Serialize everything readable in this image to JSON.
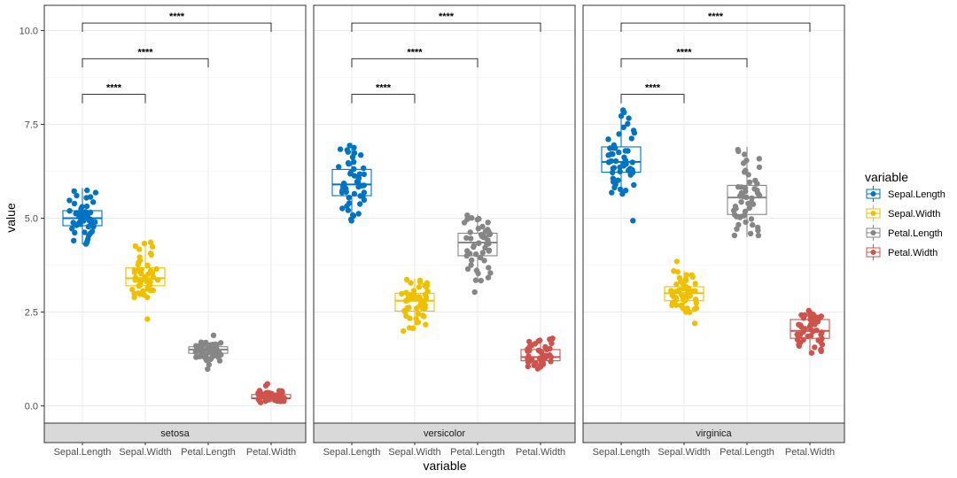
{
  "chart_data": {
    "type": "boxplot+jitter",
    "xlabel": "variable",
    "ylabel": "value",
    "ylim": [
      -0.55,
      10.55
    ],
    "yticks": [
      0.0,
      2.5,
      5.0,
      7.5,
      10.0
    ],
    "ytick_labels": [
      "0.0",
      "2.5",
      "5.0",
      "7.5",
      "10.0"
    ],
    "categories": [
      "Sepal.Length",
      "Sepal.Width",
      "Petal.Length",
      "Petal.Width"
    ],
    "legend": {
      "title": "variable",
      "entries": [
        {
          "label": "Sepal.Length",
          "color": "#0073C2"
        },
        {
          "label": "Sepal.Width",
          "color": "#EFC000"
        },
        {
          "label": "Petal.Length",
          "color": "#868686"
        },
        {
          "label": "Petal.Width",
          "color": "#CD534C"
        }
      ]
    },
    "comparisons": [
      {
        "from": "Sepal.Length",
        "to": "Sepal.Width",
        "y": 8.3,
        "label": "****"
      },
      {
        "from": "Sepal.Length",
        "to": "Petal.Length",
        "y": 9.25,
        "label": "****"
      },
      {
        "from": "Sepal.Length",
        "to": "Petal.Width",
        "y": 10.2,
        "label": "****"
      }
    ],
    "panels": [
      {
        "strip": "setosa",
        "boxes": [
          {
            "q1": 4.8,
            "median": 5.0,
            "q3": 5.2,
            "whisker_low": 4.3,
            "whisker_high": 5.8,
            "min": 4.3,
            "max": 5.8,
            "outliers": []
          },
          {
            "q1": 3.2,
            "median": 3.4,
            "q3": 3.675,
            "whisker_low": 2.9,
            "whisker_high": 4.4,
            "min": 2.3,
            "max": 4.4,
            "outliers": [
              2.3
            ]
          },
          {
            "q1": 1.4,
            "median": 1.5,
            "q3": 1.575,
            "whisker_low": 1.2,
            "whisker_high": 1.7,
            "min": 1.0,
            "max": 1.9,
            "outliers": [
              1.0,
              1.1,
              1.9
            ]
          },
          {
            "q1": 0.2,
            "median": 0.2,
            "q3": 0.3,
            "whisker_low": 0.1,
            "whisker_high": 0.4,
            "min": 0.1,
            "max": 0.6,
            "outliers": [
              0.5,
              0.6
            ]
          }
        ]
      },
      {
        "strip": "versicolor",
        "boxes": [
          {
            "q1": 5.6,
            "median": 5.9,
            "q3": 6.3,
            "whisker_low": 4.9,
            "whisker_high": 7.0,
            "min": 4.9,
            "max": 7.0,
            "outliers": []
          },
          {
            "q1": 2.525,
            "median": 2.8,
            "q3": 3.0,
            "whisker_low": 2.0,
            "whisker_high": 3.4,
            "min": 2.0,
            "max": 3.4,
            "outliers": []
          },
          {
            "q1": 4.0,
            "median": 4.35,
            "q3": 4.6,
            "whisker_low": 3.3,
            "whisker_high": 5.1,
            "min": 3.0,
            "max": 5.1,
            "outliers": [
              3.0
            ]
          },
          {
            "q1": 1.2,
            "median": 1.3,
            "q3": 1.5,
            "whisker_low": 1.0,
            "whisker_high": 1.8,
            "min": 1.0,
            "max": 1.8,
            "outliers": []
          }
        ]
      },
      {
        "strip": "virginica",
        "boxes": [
          {
            "q1": 6.225,
            "median": 6.5,
            "q3": 6.9,
            "whisker_low": 5.6,
            "whisker_high": 7.9,
            "min": 4.9,
            "max": 7.9,
            "outliers": [
              4.9
            ]
          },
          {
            "q1": 2.8,
            "median": 3.0,
            "q3": 3.175,
            "whisker_low": 2.5,
            "whisker_high": 3.6,
            "min": 2.2,
            "max": 3.8,
            "outliers": [
              2.2,
              3.8
            ]
          },
          {
            "q1": 5.1,
            "median": 5.55,
            "q3": 5.875,
            "whisker_low": 4.5,
            "whisker_high": 6.9,
            "min": 4.5,
            "max": 6.9,
            "outliers": []
          },
          {
            "q1": 1.8,
            "median": 2.0,
            "q3": 2.3,
            "whisker_low": 1.4,
            "whisker_high": 2.5,
            "min": 1.4,
            "max": 2.5,
            "outliers": []
          }
        ]
      }
    ]
  }
}
